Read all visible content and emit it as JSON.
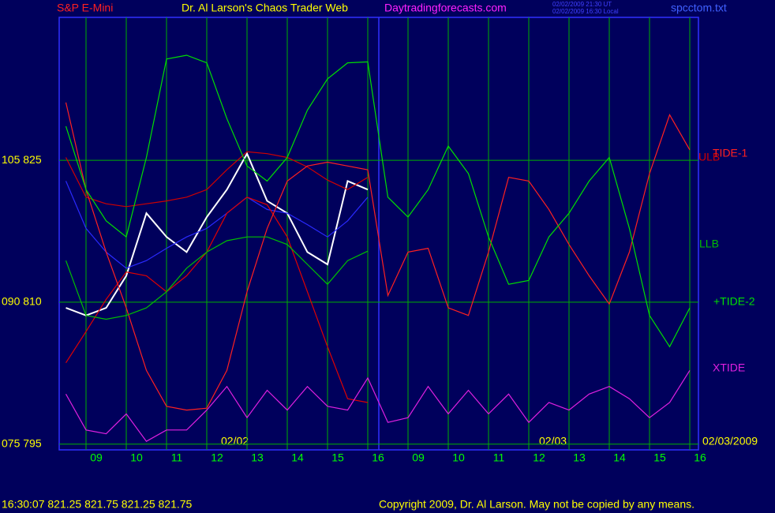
{
  "header": {
    "symbol": "S&P E-Mini",
    "title": "Dr. Al Larson's Chaos Trader Web",
    "site": "Daytradingforecasts.com",
    "time_ut": "02/02/2009 21:30 UT",
    "time_local": "02/02/2009 16:30 Local",
    "file": "spcctom.txt"
  },
  "dates": [
    "02/02",
    "02/03",
    "02/03/2009"
  ],
  "footer": {
    "quote": "16:30:07  821.25 821.75 821.25 821.75",
    "copyright": "Copyright 2009, Dr. Al Larson. May not be copied by any means."
  },
  "chart_data": {
    "type": "line",
    "categories": [
      null,
      "09",
      null,
      "10",
      null,
      "11",
      null,
      "12",
      null,
      "13",
      null,
      "14",
      null,
      "15",
      null,
      "16",
      null,
      "09",
      null,
      "10",
      null,
      "11",
      null,
      "12",
      null,
      "13",
      null,
      "14",
      null,
      "15",
      null,
      "16"
    ],
    "ylim": [
      794.4,
      840.1
    ],
    "yticks": [
      {
        "value": 825,
        "label": "105  825"
      },
      {
        "value": 810,
        "label": "090  810"
      },
      {
        "value": 795,
        "label": "075  795"
      }
    ],
    "grid": true,
    "series": [
      {
        "color": "#ffffff",
        "values": [
          809.4,
          808.6,
          809.4,
          812.8,
          819.4,
          816.9,
          815.3,
          819.0,
          821.9,
          825.7,
          820.7,
          819.4,
          815.3,
          814.0,
          822.8,
          821.9,
          null,
          null,
          null,
          null,
          null,
          null,
          null,
          null,
          null,
          null,
          null,
          null,
          null,
          null,
          null,
          null
        ]
      },
      {
        "color": "#2a2aff",
        "values": [
          822.8,
          817.8,
          815.3,
          813.6,
          814.4,
          815.7,
          816.9,
          817.8,
          819.4,
          821.1,
          819.8,
          819.4,
          818.2,
          816.9,
          818.6,
          821.1,
          null,
          null,
          null,
          null,
          null,
          null,
          null,
          null,
          null,
          null,
          null,
          null,
          null,
          null,
          null,
          null
        ]
      },
      {
        "name": "ULB",
        "color": "#d00000",
        "values": [
          825.3,
          821.1,
          820.4,
          820.1,
          820.4,
          820.7,
          821.1,
          821.9,
          824.0,
          825.9,
          825.7,
          825.3,
          824.3,
          822.9,
          821.9,
          823.2,
          null,
          null,
          null,
          null,
          null,
          null,
          null,
          null,
          null,
          null,
          null,
          null,
          null,
          null,
          null,
          null
        ]
      },
      {
        "color": "#e00000",
        "values": [
          803.6,
          806.9,
          810.3,
          813.2,
          812.8,
          811.1,
          812.8,
          815.3,
          819.4,
          821.1,
          820.3,
          816.9,
          811.1,
          805.3,
          799.8,
          799.4,
          null,
          null,
          null,
          null,
          null,
          null,
          null,
          null,
          null,
          null,
          null,
          null,
          null,
          null,
          null,
          null
        ]
      },
      {
        "name": "TIDE-1",
        "color": "#ff2020",
        "values": [
          831.1,
          821.9,
          815.3,
          809.4,
          802.8,
          799.0,
          798.6,
          798.8,
          802.8,
          811.1,
          817.8,
          822.8,
          824.4,
          824.8,
          824.4,
          824.0,
          810.7,
          815.3,
          815.7,
          809.4,
          808.6,
          815.3,
          823.2,
          822.8,
          819.8,
          816.1,
          812.8,
          809.8,
          815.3,
          823.6,
          829.8,
          826.1
        ]
      },
      {
        "name": "LLB",
        "color": "#00c000",
        "values": [
          814.4,
          808.6,
          808.2,
          808.6,
          809.4,
          811.1,
          813.6,
          815.3,
          816.5,
          816.9,
          816.9,
          816.1,
          814.0,
          811.9,
          814.4,
          815.4,
          null,
          null,
          null,
          null,
          null,
          null,
          null,
          null,
          null,
          null,
          null,
          null,
          null,
          null,
          null,
          null
        ]
      },
      {
        "name": "+TIDE-2",
        "color": "#00e000",
        "values": [
          828.6,
          821.9,
          818.6,
          816.9,
          825.3,
          835.7,
          836.1,
          835.3,
          829.4,
          824.4,
          822.8,
          825.3,
          830.3,
          833.6,
          835.3,
          835.4,
          821.1,
          819.0,
          821.9,
          826.5,
          823.6,
          816.9,
          811.9,
          812.3,
          816.9,
          819.4,
          822.8,
          825.3,
          817.8,
          808.6,
          805.3,
          809.4
        ]
      },
      {
        "name": "XTIDE",
        "color": "#e020e0",
        "values": [
          800.3,
          796.5,
          796.1,
          798.2,
          795.3,
          796.5,
          796.5,
          798.6,
          801.1,
          797.8,
          800.7,
          798.6,
          801.1,
          799.0,
          798.6,
          802.0,
          797.3,
          797.8,
          801.1,
          798.2,
          800.7,
          798.2,
          800.3,
          797.3,
          799.4,
          798.6,
          800.3,
          801.1,
          799.8,
          797.8,
          799.4,
          802.8
        ]
      }
    ]
  }
}
